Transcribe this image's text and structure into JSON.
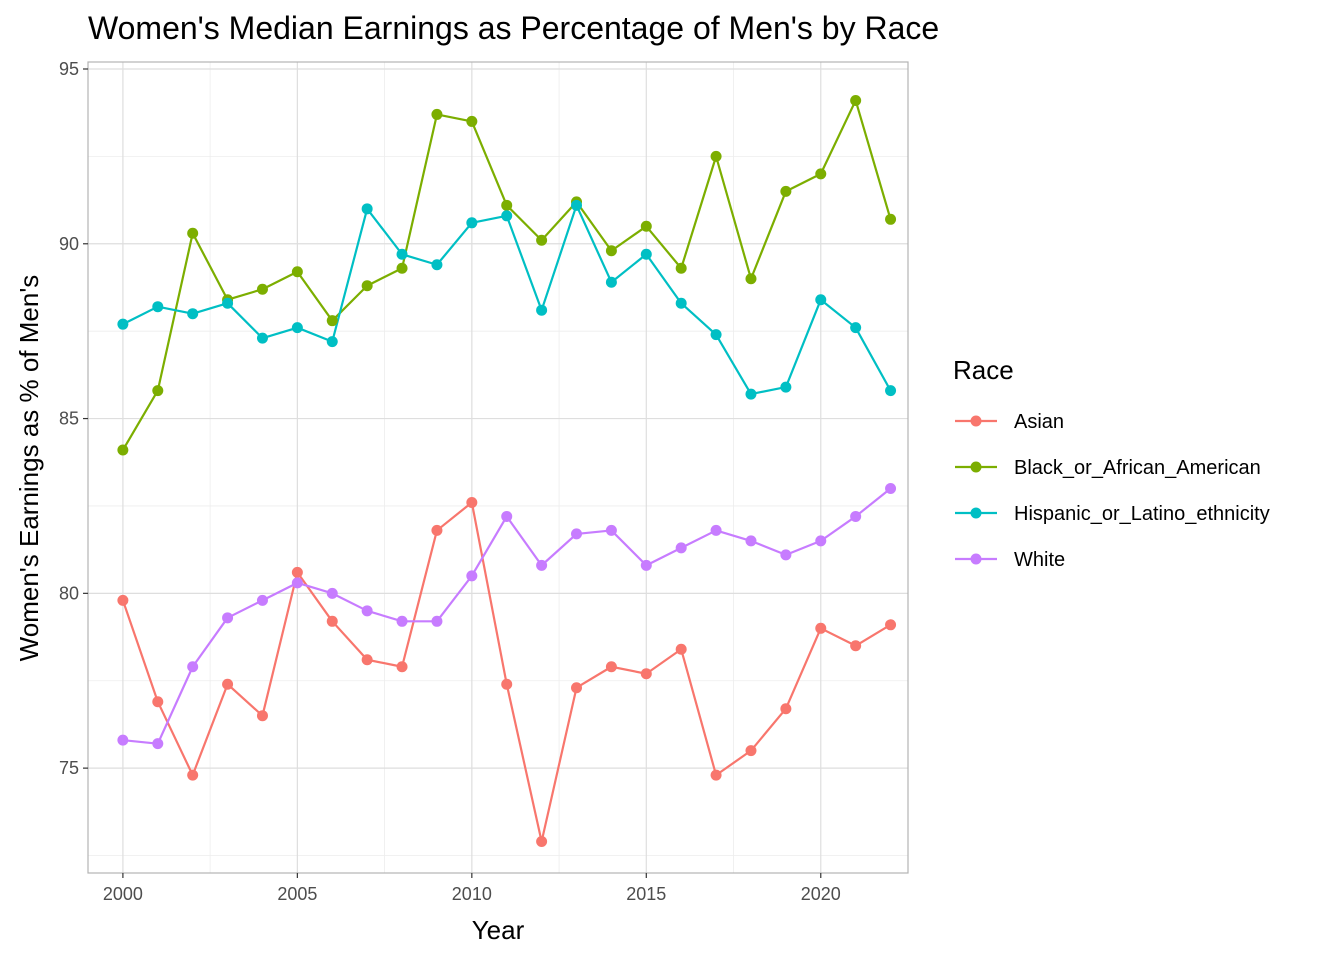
{
  "chart_data": {
    "type": "line",
    "title": "Women's Median Earnings as Percentage of Men's by Race",
    "xlabel": "Year",
    "ylabel": "Women's Earnings as % of Men's",
    "xlim": [
      1999.0,
      2022.5
    ],
    "ylim": [
      72.0,
      95.2
    ],
    "x_ticks": [
      2000,
      2005,
      2010,
      2015,
      2020
    ],
    "y_ticks": [
      75,
      80,
      85,
      90,
      95
    ],
    "grid": true,
    "legend": {
      "title": "Race",
      "position": "right"
    },
    "x": [
      2000,
      2001,
      2002,
      2003,
      2004,
      2005,
      2006,
      2007,
      2008,
      2009,
      2010,
      2011,
      2012,
      2013,
      2014,
      2015,
      2016,
      2017,
      2018,
      2019,
      2020,
      2021,
      2022
    ],
    "series": [
      {
        "name": "Asian",
        "color": "#F8766D",
        "values": [
          79.8,
          76.9,
          74.8,
          77.4,
          76.5,
          80.6,
          79.2,
          78.1,
          77.9,
          81.8,
          82.6,
          77.4,
          72.9,
          77.3,
          77.9,
          77.7,
          78.4,
          74.8,
          75.5,
          76.7,
          79.0,
          78.5,
          79.1
        ]
      },
      {
        "name": "Black_or_African_American",
        "color": "#7CAE00",
        "values": [
          84.1,
          85.8,
          90.3,
          88.4,
          88.7,
          89.2,
          87.8,
          88.8,
          89.3,
          93.7,
          93.5,
          91.1,
          90.1,
          91.2,
          89.8,
          90.5,
          89.3,
          92.5,
          89.0,
          91.5,
          92.0,
          94.1,
          90.7
        ]
      },
      {
        "name": "Hispanic_or_Latino_ethnicity",
        "color": "#00BFC4",
        "values": [
          87.7,
          88.2,
          88.0,
          88.3,
          87.3,
          87.6,
          87.2,
          91.0,
          89.7,
          89.4,
          90.6,
          90.8,
          88.1,
          91.1,
          88.9,
          89.7,
          88.3,
          87.4,
          85.7,
          85.9,
          88.4,
          87.6,
          85.8
        ]
      },
      {
        "name": "White",
        "color": "#C77CFF",
        "values": [
          75.8,
          75.7,
          77.9,
          79.3,
          79.8,
          80.3,
          80.0,
          79.5,
          79.2,
          79.2,
          80.5,
          82.2,
          80.8,
          81.7,
          81.8,
          80.8,
          81.3,
          81.8,
          81.5,
          81.1,
          81.5,
          82.2,
          83.0
        ]
      }
    ]
  }
}
